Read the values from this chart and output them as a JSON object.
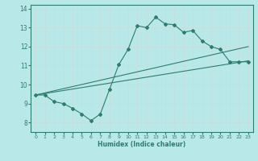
{
  "xlabel": "Humidex (Indice chaleur)",
  "bg_color": "#b8e8e8",
  "line_color": "#2e7d6e",
  "grid_color": "#c8dede",
  "xlim": [
    -0.5,
    23.5
  ],
  "ylim": [
    7.5,
    14.2
  ],
  "xticks": [
    0,
    1,
    2,
    3,
    4,
    5,
    6,
    7,
    8,
    9,
    10,
    11,
    12,
    13,
    14,
    15,
    16,
    17,
    18,
    19,
    20,
    21,
    22,
    23
  ],
  "yticks": [
    8,
    9,
    10,
    11,
    12,
    13,
    14
  ],
  "curve_x": [
    0,
    1,
    2,
    3,
    4,
    5,
    6,
    7,
    8,
    9,
    10,
    11,
    12,
    13,
    14,
    15,
    16,
    17,
    18,
    19,
    20,
    21,
    22,
    23
  ],
  "curve_y": [
    9.45,
    9.45,
    9.1,
    9.0,
    8.75,
    8.45,
    8.1,
    8.45,
    9.75,
    11.05,
    11.85,
    13.1,
    13.0,
    13.55,
    13.2,
    13.15,
    12.75,
    12.85,
    12.3,
    12.0,
    11.85,
    11.2,
    11.2,
    11.2
  ],
  "line1_x": [
    0,
    23
  ],
  "line1_y": [
    9.45,
    11.25
  ],
  "line2_x": [
    0,
    23
  ],
  "line2_y": [
    9.45,
    12.0
  ]
}
